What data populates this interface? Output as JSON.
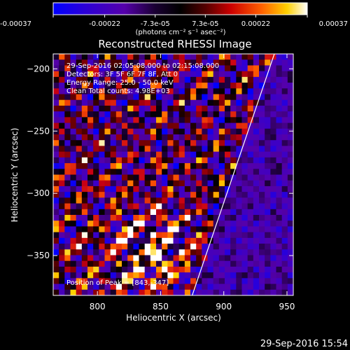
{
  "chart_data": {
    "type": "heatmap",
    "title": "Reconstructed RHESSI Image",
    "xlabel": "Heliocentric X (arcsec)",
    "ylabel": "Heliocentric Y (arcsec)",
    "xlim": [
      765,
      955
    ],
    "ylim": [
      -382,
      -188
    ],
    "x_ticks": [
      "800",
      "850",
      "900",
      "950"
    ],
    "x_tick_values": [
      800,
      850,
      900,
      950
    ],
    "y_ticks": [
      "-200",
      "-250",
      "-300",
      "-350"
    ],
    "y_tick_values": [
      -200,
      -250,
      -300,
      -350
    ],
    "colorbar": {
      "min": -0.00037,
      "max": 0.00037,
      "tick_labels": [
        "-0.00037",
        "-0.00022",
        "-7.3e-05",
        "7.3e-05",
        "0.00022",
        "0.00037"
      ],
      "tick_values": [
        -0.00037,
        -0.00022,
        -7.3e-05,
        7.3e-05,
        0.00022,
        0.00037
      ],
      "unit_label": "(photons cm⁻² s⁻¹ asec⁻²)"
    },
    "annotations": [
      "29-Sep-2016 02:05:08.000 to 02:15:08.000",
      "Detectors: 3F 5F 6F 7F 8F, Att 0",
      "Energy Range: 25.0 - 50.0 keV",
      "Clean    Total counts: 4.98E+03"
    ],
    "peak_label": "Position of Peak = [843,-347]",
    "peak_position": [
      843,
      -347
    ],
    "limb_line": {
      "x1": 875,
      "y1": -382,
      "x2": 940,
      "y2": -188
    },
    "grid": false,
    "colors": {
      "background": "#000000",
      "negative": "#1a1aff",
      "zero": "#000000",
      "positive_low": "#b0001a",
      "positive_mid": "#ff5a00",
      "positive_high": "#ffffff"
    }
  },
  "footer": {
    "timestamp": "29-Sep-2016 15:54"
  }
}
